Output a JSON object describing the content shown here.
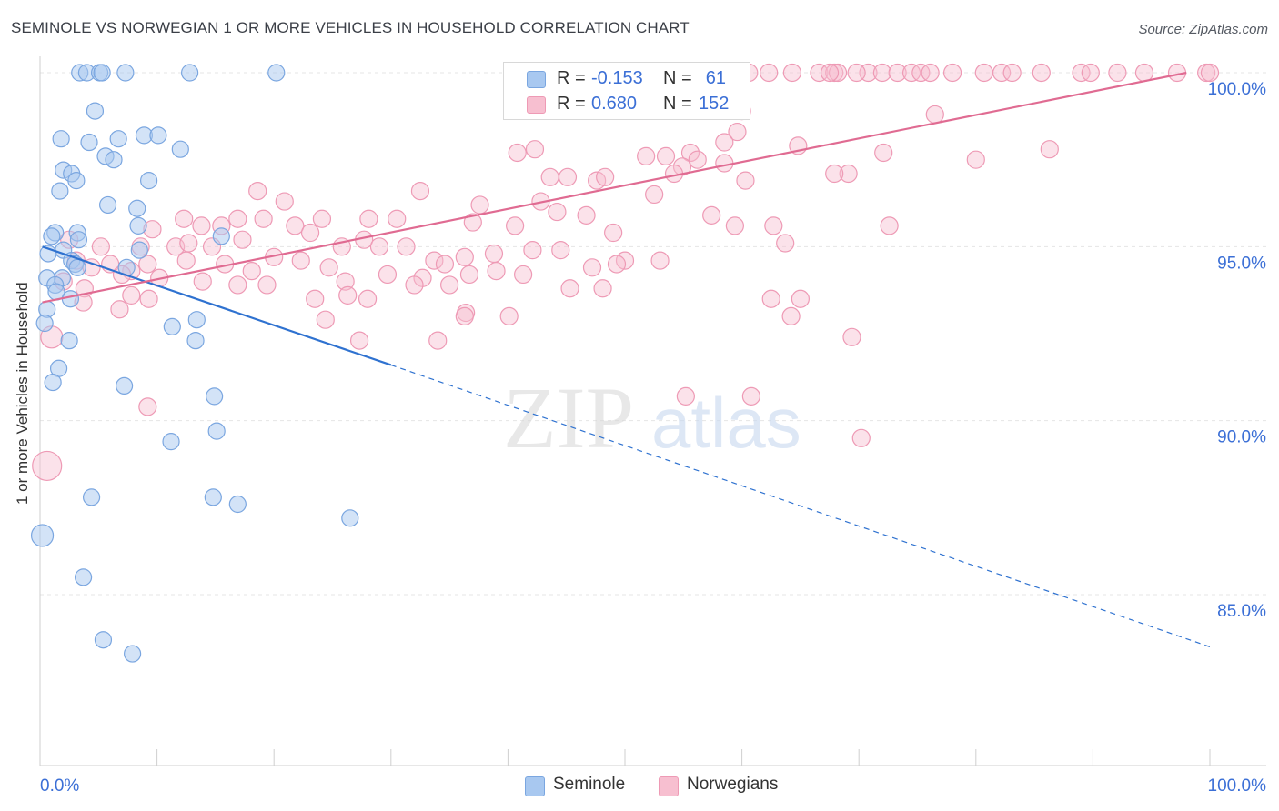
{
  "title": "SEMINOLE VS NORWEGIAN 1 OR MORE VEHICLES IN HOUSEHOLD CORRELATION CHART",
  "source": "Source: ZipAtlas.com",
  "watermark": {
    "zip": "ZIP",
    "atlas": "atlas"
  },
  "legend": {
    "r_label": "R =",
    "n_label": "N =",
    "series": [
      {
        "name": "Seminole",
        "r": "-0.153",
        "n": "61",
        "color": "#a8c8f0",
        "stroke": "#7aa6e0"
      },
      {
        "name": "Norwegians",
        "r": "0.680",
        "n": "152",
        "color": "#f7bfd0",
        "stroke": "#ee9ab5"
      }
    ]
  },
  "colors": {
    "blue_line": "#2f72d0",
    "pink_line": "#e06b92",
    "tick_text": "#3b6fd6",
    "grid": "#e5e5e5"
  },
  "chart_data": {
    "type": "scatter",
    "title": "SEMINOLE VS NORWEGIAN 1 OR MORE VEHICLES IN HOUSEHOLD CORRELATION CHART",
    "xlabel": "",
    "ylabel": "1 or more Vehicles in Household",
    "xlim": [
      0,
      100
    ],
    "ylim": [
      80.5,
      100.3
    ],
    "x_tick_labels": [
      "0.0%",
      "100.0%"
    ],
    "y_ticks": [
      85,
      90,
      95,
      100
    ],
    "y_tick_labels": [
      "85.0%",
      "90.0%",
      "95.0%",
      "100.0%"
    ],
    "grid": true,
    "legend_position": "top-center",
    "series": [
      {
        "name": "Seminole",
        "r": -0.153,
        "n": 61,
        "trend": {
          "x": [
            0.2,
            30
          ],
          "y": [
            95.0,
            91.6
          ],
          "dashed_to": [
            100,
            83.5
          ]
        },
        "points": [
          [
            3.4,
            100
          ],
          [
            4.0,
            100
          ],
          [
            5.1,
            100
          ],
          [
            5.3,
            100
          ],
          [
            7.3,
            100
          ],
          [
            12.8,
            100
          ],
          [
            20.2,
            100
          ],
          [
            4.7,
            98.9
          ],
          [
            1.8,
            98.1
          ],
          [
            4.2,
            98.0
          ],
          [
            6.7,
            98.1
          ],
          [
            8.9,
            98.2
          ],
          [
            10.1,
            98.2
          ],
          [
            12.0,
            97.8
          ],
          [
            5.6,
            97.6
          ],
          [
            6.3,
            97.5
          ],
          [
            2.0,
            97.2
          ],
          [
            2.7,
            97.1
          ],
          [
            3.1,
            96.9
          ],
          [
            9.3,
            96.9
          ],
          [
            1.7,
            96.6
          ],
          [
            5.8,
            96.2
          ],
          [
            8.3,
            96.1
          ],
          [
            8.4,
            95.6
          ],
          [
            1.3,
            95.4
          ],
          [
            3.2,
            95.4
          ],
          [
            1.0,
            95.3
          ],
          [
            15.5,
            95.3
          ],
          [
            3.3,
            95.2
          ],
          [
            8.5,
            94.9
          ],
          [
            2.0,
            94.9
          ],
          [
            0.7,
            94.8
          ],
          [
            2.7,
            94.6
          ],
          [
            3.0,
            94.5
          ],
          [
            3.2,
            94.4
          ],
          [
            7.4,
            94.4
          ],
          [
            1.9,
            94.1
          ],
          [
            0.6,
            94.1
          ],
          [
            1.3,
            93.9
          ],
          [
            1.4,
            93.7
          ],
          [
            2.6,
            93.5
          ],
          [
            0.6,
            93.2
          ],
          [
            0.4,
            92.8
          ],
          [
            13.4,
            92.9
          ],
          [
            11.3,
            92.7
          ],
          [
            2.5,
            92.3
          ],
          [
            13.3,
            92.3
          ],
          [
            1.6,
            91.5
          ],
          [
            1.1,
            91.1
          ],
          [
            7.2,
            91.0
          ],
          [
            14.9,
            90.7
          ],
          [
            15.1,
            89.7
          ],
          [
            11.2,
            89.4
          ],
          [
            4.4,
            87.8
          ],
          [
            14.8,
            87.8
          ],
          [
            16.9,
            87.6
          ],
          [
            26.5,
            87.2
          ],
          [
            0.2,
            86.7
          ],
          [
            3.7,
            85.5
          ],
          [
            5.4,
            83.7
          ],
          [
            7.9,
            83.3
          ]
        ]
      },
      {
        "name": "Norwegians",
        "r": 0.68,
        "n": 152,
        "trend": {
          "x": [
            0.2,
            98
          ],
          "y": [
            93.4,
            100.0
          ]
        },
        "points": [
          [
            60.6,
            100
          ],
          [
            62.3,
            100
          ],
          [
            64.3,
            100
          ],
          [
            66.6,
            100
          ],
          [
            67.9,
            100
          ],
          [
            68.2,
            100
          ],
          [
            70.8,
            100
          ],
          [
            72.0,
            100
          ],
          [
            73.3,
            100
          ],
          [
            74.5,
            100
          ],
          [
            75.3,
            100
          ],
          [
            76.1,
            100
          ],
          [
            78.0,
            100
          ],
          [
            80.7,
            100
          ],
          [
            82.2,
            100
          ],
          [
            83.1,
            100
          ],
          [
            85.6,
            100
          ],
          [
            89.0,
            100
          ],
          [
            89.8,
            100
          ],
          [
            92.1,
            100
          ],
          [
            94.4,
            100
          ],
          [
            97.2,
            100
          ],
          [
            99.7,
            100
          ],
          [
            100,
            100
          ],
          [
            67.5,
            100
          ],
          [
            69.8,
            100
          ],
          [
            60.0,
            98.9
          ],
          [
            51.2,
            99.1
          ],
          [
            76.5,
            98.8
          ],
          [
            59.6,
            98.3
          ],
          [
            51.8,
            97.6
          ],
          [
            55.6,
            97.7
          ],
          [
            58.5,
            98.0
          ],
          [
            64.8,
            97.9
          ],
          [
            72.1,
            97.7
          ],
          [
            45.1,
            97.0
          ],
          [
            42.3,
            97.8
          ],
          [
            40.8,
            97.7
          ],
          [
            43.6,
            97.0
          ],
          [
            47.6,
            96.9
          ],
          [
            53.5,
            97.6
          ],
          [
            54.9,
            97.3
          ],
          [
            48.3,
            97.0
          ],
          [
            32.5,
            96.6
          ],
          [
            69.1,
            97.1
          ],
          [
            52.5,
            96.5
          ],
          [
            56.2,
            97.5
          ],
          [
            67.9,
            97.1
          ],
          [
            80.0,
            97.5
          ],
          [
            86.3,
            97.8
          ],
          [
            58.5,
            97.4
          ],
          [
            54.2,
            97.1
          ],
          [
            60.3,
            96.9
          ],
          [
            18.6,
            96.6
          ],
          [
            20.9,
            96.3
          ],
          [
            12.3,
            95.8
          ],
          [
            13.8,
            95.6
          ],
          [
            15.5,
            95.6
          ],
          [
            16.9,
            95.8
          ],
          [
            19.1,
            95.8
          ],
          [
            21.8,
            95.6
          ],
          [
            24.1,
            95.8
          ],
          [
            28.1,
            95.8
          ],
          [
            30.5,
            95.8
          ],
          [
            37.6,
            96.2
          ],
          [
            37.0,
            95.7
          ],
          [
            40.6,
            95.6
          ],
          [
            42.8,
            96.3
          ],
          [
            44.2,
            96.0
          ],
          [
            46.7,
            95.9
          ],
          [
            49.0,
            95.4
          ],
          [
            59.4,
            95.6
          ],
          [
            62.7,
            95.6
          ],
          [
            63.7,
            95.1
          ],
          [
            72.6,
            95.6
          ],
          [
            57.4,
            95.9
          ],
          [
            23.1,
            95.4
          ],
          [
            27.7,
            95.2
          ],
          [
            9.6,
            95.5
          ],
          [
            8.6,
            95.0
          ],
          [
            5.2,
            95.0
          ],
          [
            2.5,
            95.2
          ],
          [
            11.6,
            95.0
          ],
          [
            12.7,
            95.1
          ],
          [
            14.7,
            95.0
          ],
          [
            17.3,
            95.2
          ],
          [
            20.0,
            94.7
          ],
          [
            22.3,
            94.6
          ],
          [
            25.8,
            95.0
          ],
          [
            29.0,
            95.0
          ],
          [
            31.3,
            95.0
          ],
          [
            33.7,
            94.6
          ],
          [
            36.3,
            94.7
          ],
          [
            38.8,
            94.8
          ],
          [
            42.1,
            94.9
          ],
          [
            44.5,
            94.9
          ],
          [
            47.2,
            94.4
          ],
          [
            50.0,
            94.6
          ],
          [
            53.0,
            94.6
          ],
          [
            3.1,
            94.6
          ],
          [
            4.4,
            94.4
          ],
          [
            6.0,
            94.5
          ],
          [
            7.8,
            94.3
          ],
          [
            9.2,
            94.5
          ],
          [
            12.5,
            94.6
          ],
          [
            15.8,
            94.5
          ],
          [
            18.1,
            94.3
          ],
          [
            24.7,
            94.4
          ],
          [
            26.1,
            94.0
          ],
          [
            29.7,
            94.2
          ],
          [
            32.7,
            94.1
          ],
          [
            34.6,
            94.5
          ],
          [
            36.7,
            94.2
          ],
          [
            39.0,
            94.3
          ],
          [
            41.3,
            94.2
          ],
          [
            45.3,
            93.8
          ],
          [
            48.1,
            93.8
          ],
          [
            49.3,
            94.5
          ],
          [
            19.4,
            93.9
          ],
          [
            16.9,
            93.9
          ],
          [
            13.9,
            94.0
          ],
          [
            10.2,
            94.1
          ],
          [
            7.0,
            94.2
          ],
          [
            3.8,
            93.8
          ],
          [
            2.0,
            94.0
          ],
          [
            7.8,
            93.6
          ],
          [
            9.3,
            93.5
          ],
          [
            3.7,
            93.4
          ],
          [
            6.8,
            93.2
          ],
          [
            28.0,
            93.5
          ],
          [
            26.3,
            93.6
          ],
          [
            23.5,
            93.5
          ],
          [
            32.0,
            93.9
          ],
          [
            35.0,
            93.9
          ],
          [
            36.4,
            93.1
          ],
          [
            36.3,
            93.0
          ],
          [
            40.1,
            93.0
          ],
          [
            64.2,
            93.0
          ],
          [
            65.0,
            93.5
          ],
          [
            62.5,
            93.5
          ],
          [
            69.4,
            92.4
          ],
          [
            24.4,
            92.9
          ],
          [
            27.3,
            92.3
          ],
          [
            34.0,
            92.3
          ],
          [
            1.0,
            92.4
          ],
          [
            9.2,
            90.4
          ],
          [
            55.2,
            90.7
          ],
          [
            60.8,
            90.7
          ],
          [
            70.2,
            89.5
          ],
          [
            0.6,
            88.7
          ]
        ]
      }
    ]
  }
}
